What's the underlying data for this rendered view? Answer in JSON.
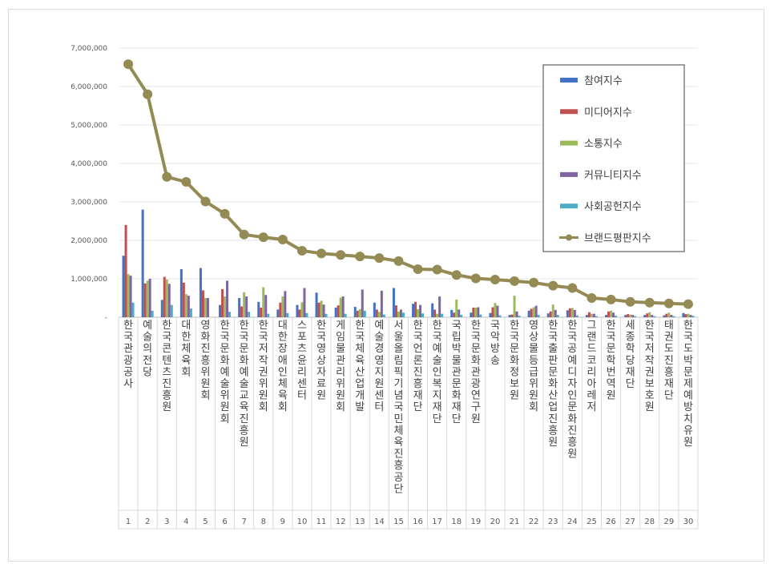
{
  "chart_data": {
    "type": "bar",
    "title": "",
    "xlabel": "",
    "ylabel": "",
    "ylim": [
      0,
      7000000
    ],
    "ytick_labels": [
      "-",
      "1,000,000",
      "2,000,000",
      "3,000,000",
      "4,000,000",
      "5,000,000",
      "6,000,000",
      "7,000,000"
    ],
    "grid": true,
    "legend_position": "top-right",
    "ranks": [
      "1",
      "2",
      "3",
      "4",
      "5",
      "6",
      "7",
      "8",
      "9",
      "10",
      "11",
      "12",
      "13",
      "14",
      "15",
      "16",
      "17",
      "18",
      "19",
      "20",
      "21",
      "22",
      "23",
      "24",
      "25",
      "26",
      "27",
      "28",
      "29",
      "30"
    ],
    "categories": [
      "한국관광공사",
      "예술의전당",
      "한국콘텐츠진흥원",
      "대한체육회",
      "영화진흥위원회",
      "한국문화예술위원회",
      "한국문화예술교육진흥원",
      "한국저작권위원회",
      "대한장애인체육회",
      "스포츠윤리센터",
      "한국영상자료원",
      "게임물관리위원회",
      "한국체육산업개발",
      "예술경영지원센터",
      "서울올림픽기념국민체육진흥공단",
      "한국언론진흥재단",
      "한국예술인복지재단",
      "국립박물관문화재단",
      "한국문화관광연구원",
      "국악방송",
      "한국문화정보원",
      "영상물등급위원회",
      "한국출판문화산업진흥원",
      "한국공예디자인문화진흥원",
      "그랜드코리아레저",
      "한국문학번역원",
      "세종학당재단",
      "한국저작권보호원",
      "태권도진흥재단",
      "한국도박문제예방치유원"
    ],
    "series": [
      {
        "name": "참여지수",
        "color": "#4472c4",
        "values": [
          1600000,
          2800000,
          450000,
          1250000,
          1280000,
          320000,
          500000,
          400000,
          200000,
          320000,
          640000,
          250000,
          270000,
          380000,
          760000,
          350000,
          360000,
          190000,
          120000,
          110000,
          60000,
          170000,
          100000,
          180000,
          60000,
          60000,
          60000,
          60000,
          50000,
          110000
        ]
      },
      {
        "name": "미디어지수",
        "color": "#c0504d",
        "values": [
          2400000,
          880000,
          1050000,
          900000,
          700000,
          730000,
          280000,
          250000,
          380000,
          200000,
          380000,
          310000,
          170000,
          200000,
          310000,
          400000,
          200000,
          120000,
          250000,
          260000,
          70000,
          220000,
          150000,
          230000,
          130000,
          150000,
          80000,
          100000,
          90000,
          80000
        ]
      },
      {
        "name": "소통지수",
        "color": "#9bbb59",
        "values": [
          1120000,
          950000,
          980000,
          600000,
          500000,
          540000,
          650000,
          780000,
          540000,
          390000,
          430000,
          510000,
          210000,
          140000,
          150000,
          210000,
          90000,
          460000,
          250000,
          370000,
          560000,
          260000,
          330000,
          240000,
          90000,
          170000,
          70000,
          130000,
          120000,
          90000
        ]
      },
      {
        "name": "커뮤니티지수",
        "color": "#8064a2",
        "values": [
          1080000,
          1000000,
          870000,
          560000,
          500000,
          950000,
          540000,
          580000,
          680000,
          760000,
          330000,
          540000,
          720000,
          690000,
          200000,
          320000,
          540000,
          200000,
          260000,
          300000,
          150000,
          300000,
          190000,
          190000,
          90000,
          120000,
          60000,
          60000,
          60000,
          60000
        ]
      },
      {
        "name": "사회공헌지수",
        "color": "#4bacc6",
        "values": [
          380000,
          170000,
          320000,
          230000,
          0,
          140000,
          140000,
          90000,
          110000,
          110000,
          90000,
          90000,
          170000,
          70000,
          120000,
          100000,
          90000,
          60000,
          70000,
          50000,
          40000,
          60000,
          60000,
          50000,
          30000,
          40000,
          30000,
          30000,
          30000,
          40000
        ]
      },
      {
        "name": "브랜드평판지수",
        "color": "#948a54",
        "type": "line",
        "values": [
          6580000,
          5800000,
          3650000,
          3520000,
          3010000,
          2690000,
          2150000,
          2080000,
          2020000,
          1730000,
          1660000,
          1620000,
          1580000,
          1540000,
          1460000,
          1250000,
          1240000,
          1100000,
          1010000,
          980000,
          940000,
          900000,
          820000,
          760000,
          500000,
          460000,
          400000,
          380000,
          360000,
          340000
        ]
      }
    ]
  }
}
